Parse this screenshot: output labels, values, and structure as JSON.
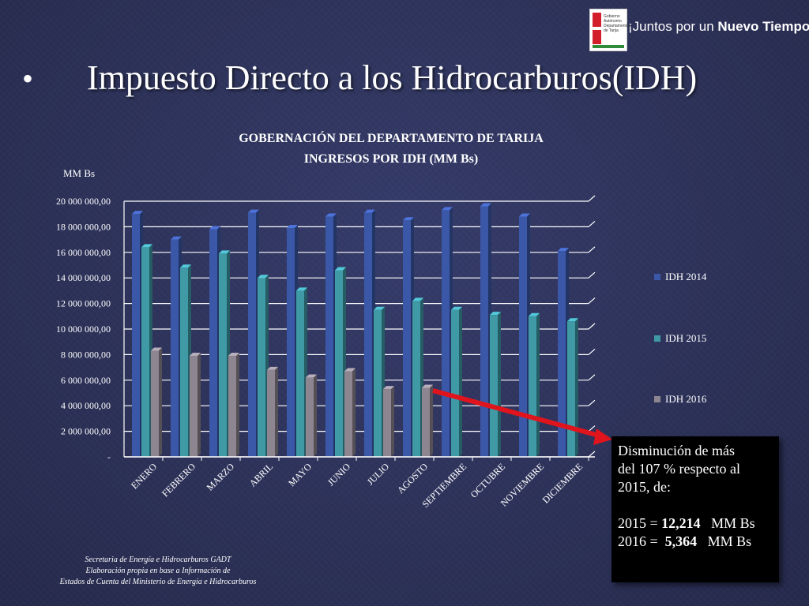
{
  "header": {
    "logo_text": "Gobierno Autónomo Departamental de Tarija",
    "slogan_prefix": "¡Juntos por un ",
    "slogan_bold": "Nuevo Tiempo!"
  },
  "slide": {
    "bullet": "•",
    "title": "Impuesto Directo a los Hidrocarburos(IDH)"
  },
  "chart_data": {
    "type": "bar",
    "title": "GOBERNACIÓN DEL DEPARTAMENTO DE TARIJA",
    "subtitle": "INGRESOS POR IDH (MM Bs)",
    "ylabel": "MM Bs",
    "ylim": [
      0,
      20000000
    ],
    "yticks": [
      0,
      2000000,
      4000000,
      6000000,
      8000000,
      10000000,
      12000000,
      14000000,
      16000000,
      18000000,
      20000000
    ],
    "ytick_labels": [
      "-",
      "2 000 000,00",
      "4 000 000,00",
      "6 000 000,00",
      "8 000 000,00",
      "10 000 000,00",
      "12 000 000,00",
      "14 000 000,00",
      "16 000 000,00",
      "18 000 000,00",
      "20 000 000,00"
    ],
    "categories": [
      "ENERO",
      "FEBRERO",
      "MARZO",
      "ABRIL",
      "MAYO",
      "JUNIO",
      "JULIO",
      "AGOSTO",
      "SEPTIEMBRE",
      "OCTUBRE",
      "NOVIEMBRE",
      "DICIEMBRE"
    ],
    "series": [
      {
        "name": "IDH 2014",
        "color": "#3b58a8",
        "values": [
          19000000,
          17000000,
          17800000,
          19100000,
          17900000,
          18800000,
          19100000,
          18500000,
          19300000,
          19600000,
          18800000,
          16100000
        ]
      },
      {
        "name": "IDH 2015",
        "color": "#3f9aa6",
        "values": [
          16400000,
          14800000,
          15900000,
          14000000,
          13000000,
          14600000,
          11500000,
          12200000,
          11500000,
          11100000,
          11000000,
          10600000
        ]
      },
      {
        "name": "IDH 2016",
        "color": "#8d8590",
        "values": [
          8300000,
          7900000,
          7900000,
          6800000,
          6200000,
          6700000,
          5300000,
          5400000,
          null,
          null,
          null,
          null
        ]
      }
    ],
    "legend_position": "right",
    "grid": true
  },
  "callout": {
    "line1": "Disminución de más",
    "line2": "del 107 % respecto al",
    "line3": "2015, de:",
    "row2015_label": "2015 = ",
    "row2015_value": "12,214",
    "row2015_unit": "   MM Bs",
    "row2016_label": "2016 =  ",
    "row2016_value": "5,364",
    "row2016_unit": "   MM Bs"
  },
  "source": {
    "line1": "Secretaria de Energía e Hidrocarburos GADT",
    "line2": "Elaboración propia en base a Información de",
    "line3": "Estados de Cuenta del Ministerio de Energía e Hidrocarburos"
  }
}
